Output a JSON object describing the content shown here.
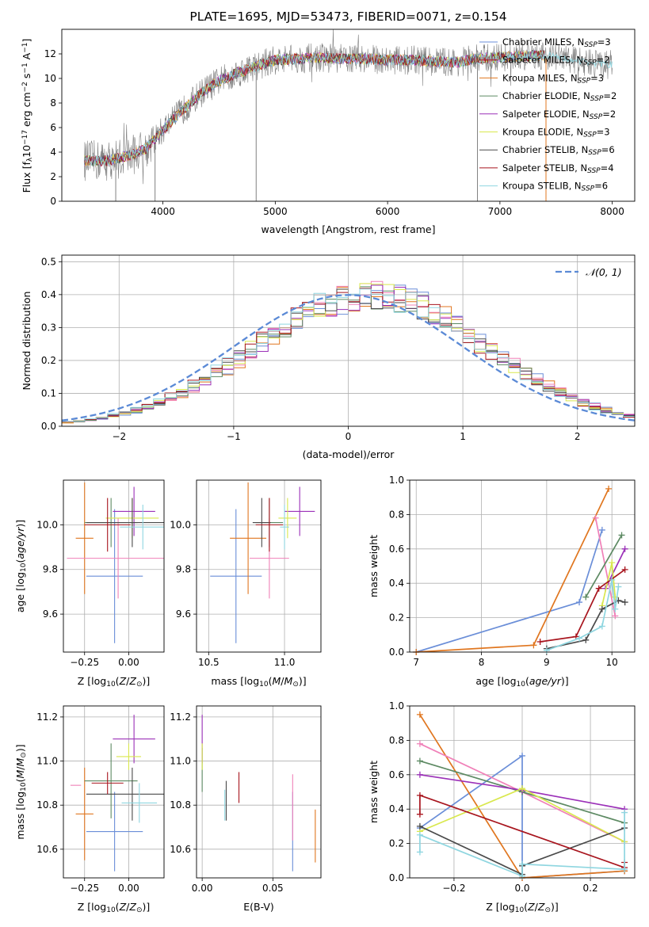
{
  "figure_title": "PLATE=1695, MJD=53473, FIBERID=0071, z=0.154",
  "series_colors": [
    "#6a8ed8",
    "#e0761f",
    "#f080b8",
    "#5d8a63",
    "#9b30b8",
    "#d9e84e",
    "#4a4a4a",
    "#a8151e",
    "#8fd6e0"
  ],
  "chart_data": [
    {
      "type": "line",
      "panel": "spectrum",
      "xlabel": "wavelength [Angstrom, rest frame]",
      "ylabel": "Flux [f_λ 10^-17 erg cm^-2 s^-1 A^-1]",
      "ylabel_parts": {
        "main": "Flux [f",
        "lam": "λ",
        "mid": "10",
        "e1": "−17",
        "u1": " erg cm",
        "e2": "−2",
        "u2": " s",
        "e3": "−1",
        "u3": " A",
        "e4": "−1",
        "end": "]"
      },
      "xlim": [
        3100,
        8200
      ],
      "ylim": [
        0,
        14
      ],
      "xticks": [
        4000,
        5000,
        6000,
        7000,
        8000
      ],
      "yticks": [
        0,
        2,
        4,
        6,
        8,
        10,
        12
      ],
      "grid": false,
      "legend_position": "upper-right",
      "legend": [
        {
          "base": "Chabrier MILES, N",
          "sub": "SSP",
          "tail": "=3"
        },
        {
          "base": "Salpeter MILES, N",
          "sub": "SSP",
          "tail": "=2"
        },
        {
          "base": "Kroupa MILES, N",
          "sub": "SSP",
          "tail": "=3"
        },
        {
          "base": "Chabrier ELODIE, N",
          "sub": "SSP",
          "tail": "=2"
        },
        {
          "base": "Salpeter ELODIE, N",
          "sub": "SSP",
          "tail": "=2"
        },
        {
          "base": "Kroupa ELODIE, N",
          "sub": "SSP",
          "tail": "=3"
        },
        {
          "base": "Chabrier STELIB, N",
          "sub": "SSP",
          "tail": "=6"
        },
        {
          "base": "Salpeter STELIB, N",
          "sub": "SSP",
          "tail": "=4"
        },
        {
          "base": "Kroupa STELIB, N",
          "sub": "SSP",
          "tail": "=6"
        }
      ],
      "legend_colors": [
        "#6a8ed8",
        "#a8151e",
        "#e0761f",
        "#5d8a63",
        "#9b30b8",
        "#d9e84e",
        "#4a4a4a",
        "#a8151e",
        "#8fd6e0"
      ],
      "continuum": {
        "x": [
          3300,
          3500,
          3700,
          3850,
          3950,
          4050,
          4200,
          4350,
          4500,
          4650,
          4800,
          5000,
          5200,
          5400,
          5600,
          5800,
          6000,
          6200,
          6400,
          6600,
          6800,
          7000,
          7200,
          7400,
          7600,
          7800,
          8000
        ],
        "y": [
          3.3,
          3.3,
          3.7,
          4.3,
          5.3,
          6.3,
          7.6,
          8.9,
          9.8,
          10.4,
          10.9,
          11.5,
          11.6,
          11.7,
          11.6,
          11.6,
          11.5,
          11.5,
          11.4,
          11.3,
          11.6,
          11.7,
          11.8,
          11.9,
          11.6,
          11.3,
          11.1
        ]
      },
      "observed_noise": 1.2,
      "spike_x": [
        3580,
        3930,
        4830,
        6800,
        7410
      ],
      "model_x_range": [
        3300,
        7400
      ],
      "observed_x_range": [
        3300,
        8000
      ]
    },
    {
      "type": "histogram",
      "panel": "residuals",
      "xlabel": "(data-model)/error",
      "ylabel": "Normed distribution",
      "xlim": [
        -2.5,
        2.5
      ],
      "ylim": [
        0,
        0.52
      ],
      "xticks": [
        -2,
        -1,
        0,
        1,
        2
      ],
      "yticks": [
        0,
        0.1,
        0.2,
        0.3,
        0.4,
        0.5
      ],
      "grid": true,
      "bin_width": 0.1,
      "reference_curve": "standard normal",
      "legend": {
        "prefix": "𝒩(0, 1)"
      },
      "legend_position": "upper-right"
    },
    {
      "type": "scatter",
      "panel": "age_vs_Z",
      "xlabel": {
        "main": "Z [log",
        "sub": "10",
        "paren": "(Z/Z",
        "sun": "⊙",
        "end": ")]"
      },
      "ylabel": {
        "main": "age  [log",
        "sub": "10",
        "end": "(age/yr)]"
      },
      "xlim": [
        -0.37,
        0.2
      ],
      "ylim": [
        9.43,
        10.2
      ],
      "xticks": [
        -0.25,
        0.0
      ],
      "yticks": [
        9.6,
        9.8,
        10.0
      ],
      "grid": true,
      "points": [
        {
          "x": -0.08,
          "xerr": 0.16,
          "y": 9.77,
          "yerr": 0.3
        },
        {
          "x": -0.25,
          "xerr": 0.05,
          "y": 9.94,
          "yerr": 0.25
        },
        {
          "x": -0.06,
          "xerr": 0.29,
          "y": 9.85,
          "yerr": 0.18
        },
        {
          "x": -0.1,
          "xerr": 0.15,
          "y": 10.01,
          "yerr": 0.11
        },
        {
          "x": 0.03,
          "xerr": 0.12,
          "y": 10.06,
          "yerr": 0.11
        },
        {
          "x": 0.02,
          "xerr": 0.15,
          "y": 10.03,
          "yerr": 0.09
        },
        {
          "x": 0.02,
          "xerr": 0.26,
          "y": 10.01,
          "yerr": 0.11
        },
        {
          "x": -0.12,
          "xerr": 0.13,
          "y": 10.0,
          "yerr": 0.12
        },
        {
          "x": 0.08,
          "xerr": 0.13,
          "y": 9.99,
          "yerr": 0.1
        }
      ]
    },
    {
      "type": "scatter",
      "panel": "age_vs_mass",
      "xlabel": {
        "main": "mass [log",
        "sub": "10",
        "paren": "(M/M",
        "sun": "⊙",
        "end": ")]"
      },
      "xlim": [
        10.42,
        11.24
      ],
      "ylim": [
        9.43,
        10.2
      ],
      "xticks": [
        10.5,
        11.0
      ],
      "yticks": [
        9.6,
        9.8,
        10.0
      ],
      "grid": true,
      "points": [
        {
          "x": 10.68,
          "xerr": 0.17,
          "y": 9.77,
          "yerr": 0.3
        },
        {
          "x": 10.76,
          "xerr": 0.12,
          "y": 9.94,
          "yerr": 0.25
        },
        {
          "x": 10.9,
          "xerr": 0.13,
          "y": 9.85,
          "yerr": 0.18
        },
        {
          "x": 10.9,
          "xerr": 0.09,
          "y": 10.01,
          "yerr": 0.11
        },
        {
          "x": 11.1,
          "xerr": 0.1,
          "y": 10.06,
          "yerr": 0.11
        },
        {
          "x": 11.02,
          "xerr": 0.06,
          "y": 10.03,
          "yerr": 0.09
        },
        {
          "x": 10.85,
          "xerr": 0.06,
          "y": 10.01,
          "yerr": 0.11
        },
        {
          "x": 10.9,
          "xerr": 0.09,
          "y": 10.0,
          "yerr": 0.12
        },
        {
          "x": 11.0,
          "xerr": 0.03,
          "y": 9.99,
          "yerr": 0.1
        }
      ]
    },
    {
      "type": "line",
      "panel": "mass_weight_vs_age",
      "xlabel": {
        "main": "age  [log",
        "sub": "10",
        "end": "(age/yr)]"
      },
      "ylabel": "mass weight",
      "xlim": [
        6.9,
        10.35
      ],
      "ylim": [
        0,
        1
      ],
      "xticks": [
        7,
        8,
        9,
        10
      ],
      "yticks": [
        0.0,
        0.2,
        0.4,
        0.6,
        0.8,
        1.0
      ],
      "grid": true,
      "series": [
        {
          "x": [
            7.0,
            9.5,
            9.85
          ],
          "y": [
            0.0,
            0.29,
            0.71
          ]
        },
        {
          "x": [
            7.0,
            8.8,
            9.95
          ],
          "y": [
            0.0,
            0.04,
            0.95
          ]
        },
        {
          "x": [
            9.75,
            10.05
          ],
          "y": [
            0.78,
            0.21
          ]
        },
        {
          "x": [
            9.6,
            10.15
          ],
          "y": [
            0.32,
            0.68
          ]
        },
        {
          "x": [
            9.9,
            10.2
          ],
          "y": [
            0.37,
            0.6
          ]
        },
        {
          "x": [
            9.85,
            10.0,
            10.05
          ],
          "y": [
            0.27,
            0.52,
            0.32
          ]
        },
        {
          "x": [
            9.0,
            9.6,
            9.85,
            10.1,
            10.2
          ],
          "y": [
            0.02,
            0.07,
            0.25,
            0.3,
            0.29
          ]
        },
        {
          "x": [
            8.9,
            9.45,
            9.8,
            10.2
          ],
          "y": [
            0.06,
            0.09,
            0.37,
            0.48
          ]
        },
        {
          "x": [
            9.0,
            9.5,
            9.85,
            10.0,
            10.05,
            10.1
          ],
          "y": [
            0.01,
            0.08,
            0.15,
            0.42,
            0.25,
            0.38
          ]
        }
      ]
    },
    {
      "type": "scatter",
      "panel": "mass_vs_Z",
      "xlabel": {
        "main": "Z [log",
        "sub": "10",
        "paren": "(Z/Z",
        "sun": "⊙",
        "end": ")]"
      },
      "ylabel": {
        "main": "mass [log",
        "sub": "10",
        "paren": "(M/M",
        "sun": "⊙",
        "end": ")]"
      },
      "xlim": [
        -0.37,
        0.2
      ],
      "ylim": [
        10.47,
        11.25
      ],
      "xticks": [
        -0.25,
        0.0
      ],
      "yticks": [
        10.6,
        10.8,
        11.0,
        11.2
      ],
      "grid": true,
      "points": [
        {
          "x": -0.08,
          "xerr": 0.16,
          "y": 10.68,
          "yerr": 0.18
        },
        {
          "x": -0.25,
          "xerr": 0.05,
          "y": 10.76,
          "yerr": 0.21
        },
        {
          "x": -0.3,
          "xerr": 0.03,
          "y": 10.89,
          "yerr": 0.0
        },
        {
          "x": -0.1,
          "xerr": 0.15,
          "y": 10.91,
          "yerr": 0.17
        },
        {
          "x": 0.03,
          "xerr": 0.12,
          "y": 11.1,
          "yerr": 0.11
        },
        {
          "x": 0.0,
          "xerr": 0.07,
          "y": 11.02,
          "yerr": 0.06
        },
        {
          "x": 0.02,
          "xerr": 0.26,
          "y": 10.85,
          "yerr": 0.12
        },
        {
          "x": -0.12,
          "xerr": 0.09,
          "y": 10.9,
          "yerr": 0.05
        },
        {
          "x": 0.06,
          "xerr": 0.1,
          "y": 10.81,
          "yerr": 0.09
        }
      ]
    },
    {
      "type": "scatter",
      "panel": "mass_vs_ebv",
      "xlabel": "E(B-V)",
      "xlim": [
        -0.004,
        0.084
      ],
      "ylim": [
        10.47,
        11.25
      ],
      "xticks": [
        0.0,
        0.05
      ],
      "yticks": [
        10.6,
        10.8,
        11.0,
        11.2
      ],
      "grid": true,
      "points": [
        {
          "x": 0.064,
          "xerr": 0,
          "y": 10.68,
          "yerr": 0.18
        },
        {
          "x": 0.08,
          "xerr": 0,
          "y": 10.66,
          "yerr": 0.12
        },
        {
          "x": 0.064,
          "xerr": 0,
          "y": 10.79,
          "yerr": 0.15
        },
        {
          "x": 0.0,
          "xerr": 0,
          "y": 10.96,
          "yerr": 0.1
        },
        {
          "x": 0.0,
          "xerr": 0,
          "y": 11.1,
          "yerr": 0.11
        },
        {
          "x": 0.0,
          "xerr": 0,
          "y": 11.02,
          "yerr": 0.06
        },
        {
          "x": 0.017,
          "xerr": 0,
          "y": 10.82,
          "yerr": 0.09
        },
        {
          "x": 0.026,
          "xerr": 0,
          "y": 10.88,
          "yerr": 0.07
        },
        {
          "x": 0.016,
          "xerr": 0,
          "y": 10.8,
          "yerr": 0.07
        }
      ]
    },
    {
      "type": "line",
      "panel": "mass_weight_vs_Z",
      "xlabel": {
        "main": "Z [log",
        "sub": "10",
        "paren": "(Z/Z",
        "sun": "⊙",
        "end": ")]"
      },
      "ylabel": "mass weight",
      "xlim": [
        -0.33,
        0.33
      ],
      "ylim": [
        0,
        1
      ],
      "xticks": [
        -0.2,
        0.0,
        0.2
      ],
      "yticks": [
        0.0,
        0.2,
        0.4,
        0.6,
        0.8,
        1.0
      ],
      "grid": true,
      "series": [
        {
          "x": [
            -0.3,
            0.0,
            0.0,
            0.3
          ],
          "y": [
            0.29,
            0.71,
            0.0,
            0.04
          ]
        },
        {
          "x": [
            -0.3,
            0.0,
            0.3
          ],
          "y": [
            0.95,
            0.0,
            0.04
          ]
        },
        {
          "x": [
            -0.3,
            0.0,
            0.3
          ],
          "y": [
            0.78,
            0.5,
            0.21
          ]
        },
        {
          "x": [
            -0.3,
            0.0,
            0.3
          ],
          "y": [
            0.68,
            0.5,
            0.32
          ]
        },
        {
          "x": [
            -0.3,
            0.0,
            0.3
          ],
          "y": [
            0.6,
            0.51,
            0.4
          ]
        },
        {
          "x": [
            -0.3,
            0.0,
            0.3
          ],
          "y": [
            0.27,
            0.52,
            0.21
          ]
        },
        {
          "x": [
            -0.3,
            0.0,
            0.0,
            0.3
          ],
          "y": [
            0.3,
            0.02,
            0.07,
            0.29
          ]
        },
        {
          "x": [
            -0.3,
            -0.3,
            0.3,
            0.3
          ],
          "y": [
            0.37,
            0.48,
            0.06,
            0.09
          ]
        },
        {
          "x": [
            -0.3,
            -0.3,
            0.0,
            0.0,
            0.3,
            0.3
          ],
          "y": [
            0.15,
            0.25,
            0.01,
            0.08,
            0.05,
            0.38
          ]
        }
      ]
    }
  ]
}
